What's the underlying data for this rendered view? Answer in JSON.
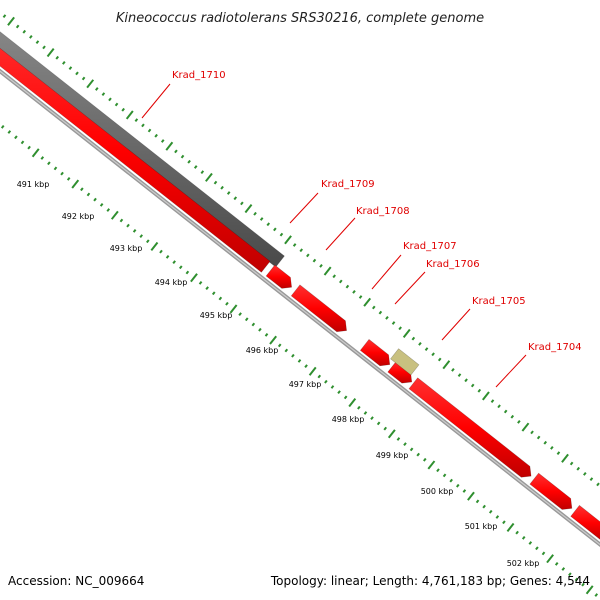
{
  "title": "Kineococcus radiotolerans SRS30216, complete genome",
  "footer": {
    "accession": "Accession: NC_009664",
    "summary": "Topology: linear; Length: 4,761,183 bp; Genes: 4,544"
  },
  "colors": {
    "gene": "#ff0000",
    "gene_dark": "#b00000",
    "pseudogene": "#666666",
    "other_feature": "#c8c080",
    "tick": "#2f8f2f",
    "track_line": "#888888",
    "label": "#e00000"
  },
  "kbp_labels": [
    "491 kbp",
    "492 kbp",
    "493 kbp",
    "494 kbp",
    "495 kbp",
    "496 kbp",
    "497 kbp",
    "498 kbp",
    "499 kbp",
    "500 kbp",
    "501 kbp",
    "502 kbp"
  ],
  "gene_labels": [
    "Krad_1710",
    "Krad_1709",
    "Krad_1708",
    "Krad_1707",
    "Krad_1706",
    "Krad_1705",
    "Krad_1704"
  ]
}
